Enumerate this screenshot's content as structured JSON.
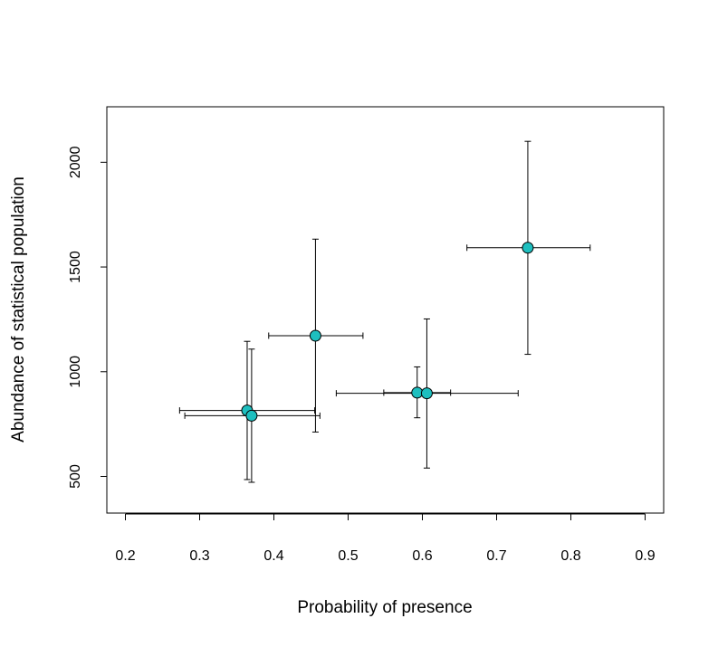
{
  "chart_data": {
    "type": "scatter",
    "title": "",
    "xlabel": "Probability of presence",
    "ylabel": "Abundance of statistical population",
    "xlim": [
      0.175,
      0.925
    ],
    "ylim": [
      325,
      2265
    ],
    "x_ticks": [
      0.2,
      0.3,
      0.4,
      0.5,
      0.6,
      0.7,
      0.8,
      0.9
    ],
    "x_tick_labels": [
      "0.2",
      "0.3",
      "0.4",
      "0.5",
      "0.6",
      "0.7",
      "0.8",
      "0.9"
    ],
    "y_ticks": [
      500,
      1000,
      1500,
      2000
    ],
    "y_tick_labels": [
      "500",
      "1000",
      "1500",
      "2000"
    ],
    "grid": false,
    "legend": false,
    "marker_color": "#1ebfbf",
    "marker_edge_color": "#000000",
    "errorbar_color": "#000000",
    "points": [
      {
        "x": 0.364,
        "y": 815,
        "x_err": [
          0.273,
          0.455
        ],
        "y_err": [
          485,
          1145
        ]
      },
      {
        "x": 0.37,
        "y": 790,
        "x_err": [
          0.28,
          0.462
        ],
        "y_err": [
          472,
          1108
        ]
      },
      {
        "x": 0.456,
        "y": 1172,
        "x_err": [
          0.393,
          0.52
        ],
        "y_err": [
          712,
          1633
        ]
      },
      {
        "x": 0.593,
        "y": 900,
        "x_err": [
          0.548,
          0.638
        ],
        "y_err": [
          780,
          1023
        ]
      },
      {
        "x": 0.606,
        "y": 897,
        "x_err": [
          0.484,
          0.729
        ],
        "y_err": [
          540,
          1252
        ]
      },
      {
        "x": 0.742,
        "y": 1592,
        "x_err": [
          0.66,
          0.826
        ],
        "y_err": [
          1083,
          2100
        ]
      }
    ]
  }
}
